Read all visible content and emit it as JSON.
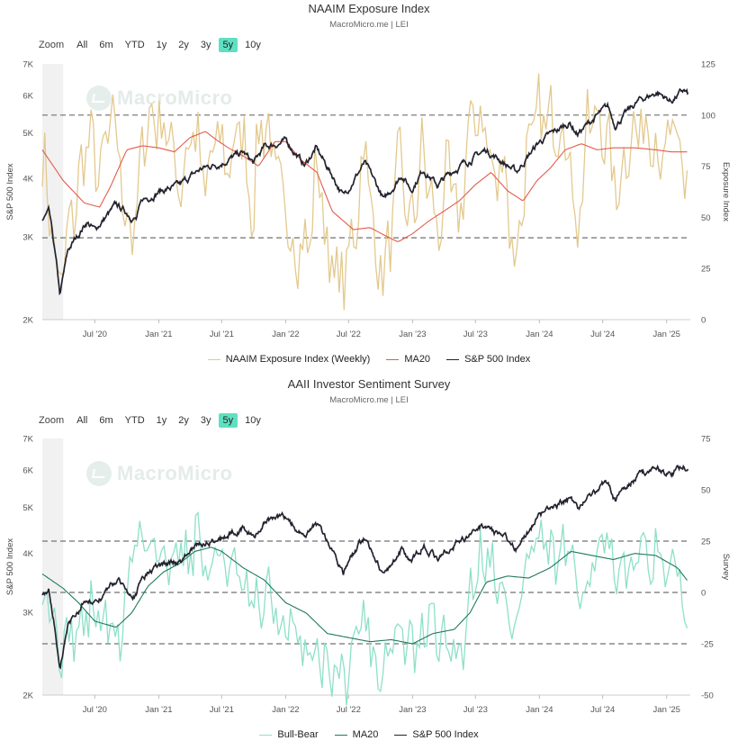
{
  "zoom": {
    "label": "Zoom",
    "buttons": [
      "All",
      "6m",
      "YTD",
      "1y",
      "2y",
      "3y",
      "5y",
      "10y"
    ],
    "active": "5y"
  },
  "watermark": "MacroMicro",
  "chart_data": [
    {
      "type": "line",
      "title": "NAAIM Exposure Index",
      "subtitle": "MacroMicro.me | LEI",
      "x_range": [
        "2020-02-01",
        "2025-03-10"
      ],
      "x_ticks": [
        "Jul '20",
        "Jan '21",
        "Jul '21",
        "Jan '22",
        "Jul '22",
        "Jan '23",
        "Jul '23",
        "Jan '24",
        "Jul '24",
        "Jan '25"
      ],
      "shaded_region": [
        "2020-02-01",
        "2020-04-01"
      ],
      "left_axis": {
        "label": "S&P 500 Index",
        "scale": "log",
        "range": [
          2000,
          7000
        ],
        "ticks": [
          "2K",
          "3K",
          "4K",
          "5K",
          "6K",
          "7K"
        ]
      },
      "right_axis": {
        "label": "Exposure Index",
        "range": [
          0,
          125
        ],
        "ticks": [
          "0",
          "25",
          "50",
          "75",
          "100",
          "125"
        ]
      },
      "reference_lines": [
        100,
        40
      ],
      "legend": [
        "NAAIM Exposure Index (Weekly)",
        "MA20",
        "S&P 500 Index"
      ],
      "colors": {
        "primary": "#e3c98e",
        "ma": "#e25b4b",
        "spx": "#23232f"
      },
      "primary_anchors": [
        [
          "2020-02-01",
          80
        ],
        [
          "2020-03-01",
          45
        ],
        [
          "2020-03-20",
          12
        ],
        [
          "2020-04-15",
          40
        ],
        [
          "2020-05-15",
          65
        ],
        [
          "2020-06-10",
          90
        ],
        [
          "2020-07-15",
          70
        ],
        [
          "2020-08-25",
          100
        ],
        [
          "2020-09-25",
          55
        ],
        [
          "2020-10-25",
          40
        ],
        [
          "2020-11-20",
          95
        ],
        [
          "2020-12-25",
          100
        ],
        [
          "2021-02-01",
          90
        ],
        [
          "2021-03-01",
          65
        ],
        [
          "2021-04-10",
          95
        ],
        [
          "2021-05-15",
          62
        ],
        [
          "2021-06-15",
          90
        ],
        [
          "2021-07-20",
          75
        ],
        [
          "2021-08-25",
          95
        ],
        [
          "2021-09-30",
          52
        ],
        [
          "2021-10-20",
          100
        ],
        [
          "2021-11-20",
          88
        ],
        [
          "2021-12-20",
          55
        ],
        [
          "2022-01-28",
          38
        ],
        [
          "2022-03-10",
          35
        ],
        [
          "2022-04-01",
          78
        ],
        [
          "2022-05-10",
          25
        ],
        [
          "2022-06-15",
          18
        ],
        [
          "2022-07-20",
          45
        ],
        [
          "2022-08-15",
          88
        ],
        [
          "2022-09-20",
          30
        ],
        [
          "2022-10-15",
          22
        ],
        [
          "2022-11-25",
          78
        ],
        [
          "2022-12-25",
          42
        ],
        [
          "2023-01-30",
          82
        ],
        [
          "2023-03-15",
          40
        ],
        [
          "2023-04-15",
          75
        ],
        [
          "2023-05-10",
          42
        ],
        [
          "2023-06-15",
          95
        ],
        [
          "2023-07-25",
          100
        ],
        [
          "2023-08-25",
          62
        ],
        [
          "2023-09-20",
          85
        ],
        [
          "2023-10-20",
          25
        ],
        [
          "2023-11-25",
          75
        ],
        [
          "2023-12-25",
          100
        ],
        [
          "2024-02-01",
          95
        ],
        [
          "2024-03-10",
          100
        ],
        [
          "2024-04-20",
          45
        ],
        [
          "2024-05-20",
          95
        ],
        [
          "2024-06-25",
          100
        ],
        [
          "2024-07-30",
          72
        ],
        [
          "2024-08-10",
          60
        ],
        [
          "2024-09-10",
          88
        ],
        [
          "2024-10-15",
          92
        ],
        [
          "2024-11-15",
          98
        ],
        [
          "2024-12-20",
          75
        ],
        [
          "2025-01-20",
          92
        ],
        [
          "2025-02-20",
          65
        ],
        [
          "2025-03-05",
          90
        ]
      ],
      "ma_anchors": [
        [
          "2020-02-01",
          83
        ],
        [
          "2020-04-01",
          68
        ],
        [
          "2020-06-01",
          57
        ],
        [
          "2020-07-15",
          55
        ],
        [
          "2020-08-15",
          65
        ],
        [
          "2020-10-01",
          83
        ],
        [
          "2020-11-15",
          85
        ],
        [
          "2021-01-01",
          84
        ],
        [
          "2021-02-15",
          82
        ],
        [
          "2021-04-01",
          89
        ],
        [
          "2021-05-15",
          92
        ],
        [
          "2021-06-15",
          88
        ],
        [
          "2021-07-20",
          84
        ],
        [
          "2021-09-01",
          80
        ],
        [
          "2021-10-15",
          75
        ],
        [
          "2021-12-01",
          87
        ],
        [
          "2022-01-01",
          87
        ],
        [
          "2022-02-15",
          78
        ],
        [
          "2022-04-01",
          72
        ],
        [
          "2022-05-15",
          53
        ],
        [
          "2022-07-15",
          44
        ],
        [
          "2022-09-01",
          45
        ],
        [
          "2022-10-15",
          41
        ],
        [
          "2022-11-20",
          38
        ],
        [
          "2023-01-01",
          42
        ],
        [
          "2023-02-15",
          48
        ],
        [
          "2023-04-01",
          53
        ],
        [
          "2023-05-15",
          58
        ],
        [
          "2023-07-01",
          66
        ],
        [
          "2023-08-15",
          72
        ],
        [
          "2023-10-01",
          63
        ],
        [
          "2023-11-15",
          58
        ],
        [
          "2023-12-25",
          68
        ],
        [
          "2024-02-01",
          74
        ],
        [
          "2024-03-15",
          83
        ],
        [
          "2024-05-01",
          86
        ],
        [
          "2024-06-15",
          83
        ],
        [
          "2024-08-01",
          84
        ],
        [
          "2024-10-01",
          84
        ],
        [
          "2024-12-01",
          83
        ],
        [
          "2025-01-15",
          82
        ],
        [
          "2025-03-05",
          82
        ]
      ],
      "spx_anchors": [
        [
          "2020-02-01",
          3250
        ],
        [
          "2020-02-20",
          3380
        ],
        [
          "2020-03-23",
          2240
        ],
        [
          "2020-04-15",
          2800
        ],
        [
          "2020-06-08",
          3230
        ],
        [
          "2020-07-01",
          3100
        ],
        [
          "2020-09-01",
          3500
        ],
        [
          "2020-10-28",
          3270
        ],
        [
          "2020-11-15",
          3580
        ],
        [
          "2021-01-01",
          3750
        ],
        [
          "2021-03-01",
          3850
        ],
        [
          "2021-05-01",
          4180
        ],
        [
          "2021-07-01",
          4320
        ],
        [
          "2021-09-01",
          4530
        ],
        [
          "2021-10-01",
          4300
        ],
        [
          "2021-11-01",
          4660
        ],
        [
          "2022-01-03",
          4790
        ],
        [
          "2022-02-25",
          4250
        ],
        [
          "2022-03-29",
          4630
        ],
        [
          "2022-06-16",
          3660
        ],
        [
          "2022-08-16",
          4300
        ],
        [
          "2022-10-12",
          3580
        ],
        [
          "2022-12-01",
          4080
        ],
        [
          "2022-12-28",
          3780
        ],
        [
          "2023-02-02",
          4180
        ],
        [
          "2023-03-13",
          3860
        ],
        [
          "2023-05-01",
          4170
        ],
        [
          "2023-07-31",
          4590
        ],
        [
          "2023-10-27",
          4120
        ],
        [
          "2023-12-31",
          4770
        ],
        [
          "2024-03-28",
          5250
        ],
        [
          "2024-04-19",
          4970
        ],
        [
          "2024-07-16",
          5670
        ],
        [
          "2024-08-05",
          5190
        ],
        [
          "2024-10-15",
          5860
        ],
        [
          "2024-12-06",
          6090
        ],
        [
          "2025-01-13",
          5830
        ],
        [
          "2025-02-19",
          6140
        ],
        [
          "2025-03-05",
          6000
        ]
      ]
    },
    {
      "type": "line",
      "title": "AAII Investor Sentiment Survey",
      "subtitle": "MacroMicro.me | LEI",
      "x_range": [
        "2020-02-01",
        "2025-03-10"
      ],
      "x_ticks": [
        "Jul '20",
        "Jan '21",
        "Jul '21",
        "Jan '22",
        "Jul '22",
        "Jan '23",
        "Jul '23",
        "Jan '24",
        "Jul '24",
        "Jan '25"
      ],
      "shaded_region": [
        "2020-02-01",
        "2020-04-01"
      ],
      "left_axis": {
        "label": "S&P 500 Index",
        "scale": "log",
        "range": [
          2000,
          7000
        ],
        "ticks": [
          "2K",
          "3K",
          "4K",
          "5K",
          "6K",
          "7K"
        ]
      },
      "right_axis": {
        "label": "Survey",
        "range": [
          -50,
          75
        ],
        "ticks": [
          "-50",
          "-25",
          "0",
          "25",
          "50",
          "75"
        ]
      },
      "reference_lines": [
        25,
        0,
        -25
      ],
      "legend": [
        "Bull-Bear",
        "MA20",
        "S&P 500 Index"
      ],
      "colors": {
        "primary": "#8ee0c8",
        "ma": "#1f7a5c",
        "spx": "#23232f"
      },
      "primary_anchors": [
        [
          "2020-02-01",
          5
        ],
        [
          "2020-03-01",
          -8
        ],
        [
          "2020-03-20",
          -30
        ],
        [
          "2020-04-20",
          -20
        ],
        [
          "2020-05-20",
          -18
        ],
        [
          "2020-06-20",
          -8
        ],
        [
          "2020-07-20",
          -12
        ],
        [
          "2020-08-20",
          -20
        ],
        [
          "2020-09-15",
          -22
        ],
        [
          "2020-10-15",
          20
        ],
        [
          "2020-11-15",
          28
        ],
        [
          "2020-12-20",
          25
        ],
        [
          "2021-01-25",
          8
        ],
        [
          "2021-02-20",
          28
        ],
        [
          "2021-03-25",
          15
        ],
        [
          "2021-04-25",
          32
        ],
        [
          "2021-05-20",
          5
        ],
        [
          "2021-06-15",
          20
        ],
        [
          "2021-07-20",
          15
        ],
        [
          "2021-08-20",
          5
        ],
        [
          "2021-09-20",
          -5
        ],
        [
          "2021-10-15",
          -10
        ],
        [
          "2021-11-20",
          0
        ],
        [
          "2021-12-20",
          -20
        ],
        [
          "2022-01-25",
          -20
        ],
        [
          "2022-02-20",
          -30
        ],
        [
          "2022-03-20",
          -25
        ],
        [
          "2022-04-25",
          -35
        ],
        [
          "2022-05-25",
          -38
        ],
        [
          "2022-06-25",
          -40
        ],
        [
          "2022-07-20",
          -20
        ],
        [
          "2022-08-20",
          -10
        ],
        [
          "2022-09-20",
          -40
        ],
        [
          "2022-10-20",
          -30
        ],
        [
          "2022-11-20",
          -18
        ],
        [
          "2022-12-20",
          -25
        ],
        [
          "2023-01-20",
          -30
        ],
        [
          "2023-02-20",
          -10
        ],
        [
          "2023-03-20",
          -25
        ],
        [
          "2023-04-20",
          -25
        ],
        [
          "2023-05-20",
          -30
        ],
        [
          "2023-06-20",
          5
        ],
        [
          "2023-07-20",
          20
        ],
        [
          "2023-08-20",
          15
        ],
        [
          "2023-09-20",
          -5
        ],
        [
          "2023-10-20",
          -20
        ],
        [
          "2023-11-20",
          10
        ],
        [
          "2023-12-20",
          25
        ],
        [
          "2024-01-20",
          20
        ],
        [
          "2024-02-20",
          15
        ],
        [
          "2024-03-20",
          20
        ],
        [
          "2024-04-20",
          0
        ],
        [
          "2024-05-20",
          10
        ],
        [
          "2024-06-20",
          25
        ],
        [
          "2024-07-20",
          20
        ],
        [
          "2024-08-10",
          0
        ],
        [
          "2024-09-20",
          15
        ],
        [
          "2024-10-20",
          20
        ],
        [
          "2024-11-20",
          20
        ],
        [
          "2024-12-20",
          10
        ],
        [
          "2025-01-20",
          15
        ],
        [
          "2025-02-20",
          -15
        ],
        [
          "2025-03-05",
          -12
        ]
      ],
      "ma_anchors": [
        [
          "2020-02-01",
          9
        ],
        [
          "2020-04-01",
          2
        ],
        [
          "2020-05-15",
          -5
        ],
        [
          "2020-07-01",
          -14
        ],
        [
          "2020-09-01",
          -17
        ],
        [
          "2020-10-15",
          -10
        ],
        [
          "2020-12-01",
          3
        ],
        [
          "2021-01-15",
          10
        ],
        [
          "2021-03-01",
          14
        ],
        [
          "2021-04-15",
          20
        ],
        [
          "2021-06-01",
          22
        ],
        [
          "2021-07-01",
          20
        ],
        [
          "2021-09-01",
          12
        ],
        [
          "2021-11-01",
          6
        ],
        [
          "2022-01-01",
          -5
        ],
        [
          "2022-03-01",
          -10
        ],
        [
          "2022-05-01",
          -20
        ],
        [
          "2022-07-01",
          -22
        ],
        [
          "2022-09-01",
          -24
        ],
        [
          "2022-11-01",
          -23
        ],
        [
          "2023-01-01",
          -25
        ],
        [
          "2023-03-01",
          -20
        ],
        [
          "2023-05-01",
          -18
        ],
        [
          "2023-06-15",
          -10
        ],
        [
          "2023-08-01",
          5
        ],
        [
          "2023-10-01",
          8
        ],
        [
          "2023-12-01",
          7
        ],
        [
          "2024-02-01",
          12
        ],
        [
          "2024-04-01",
          20
        ],
        [
          "2024-06-01",
          18
        ],
        [
          "2024-08-01",
          16
        ],
        [
          "2024-10-01",
          19
        ],
        [
          "2024-12-01",
          18
        ],
        [
          "2025-02-01",
          12
        ],
        [
          "2025-03-05",
          5
        ]
      ],
      "spx_anchors": [
        [
          "2020-02-01",
          3250
        ],
        [
          "2020-02-20",
          3380
        ],
        [
          "2020-03-23",
          2240
        ],
        [
          "2020-04-15",
          2800
        ],
        [
          "2020-06-08",
          3230
        ],
        [
          "2020-07-01",
          3100
        ],
        [
          "2020-09-01",
          3500
        ],
        [
          "2020-10-28",
          3270
        ],
        [
          "2020-11-15",
          3580
        ],
        [
          "2021-01-01",
          3750
        ],
        [
          "2021-03-01",
          3850
        ],
        [
          "2021-05-01",
          4180
        ],
        [
          "2021-07-01",
          4320
        ],
        [
          "2021-09-01",
          4530
        ],
        [
          "2021-10-01",
          4300
        ],
        [
          "2021-11-01",
          4660
        ],
        [
          "2022-01-03",
          4790
        ],
        [
          "2022-02-25",
          4250
        ],
        [
          "2022-03-29",
          4630
        ],
        [
          "2022-06-16",
          3660
        ],
        [
          "2022-08-16",
          4300
        ],
        [
          "2022-10-12",
          3580
        ],
        [
          "2022-12-01",
          4080
        ],
        [
          "2022-12-28",
          3780
        ],
        [
          "2023-02-02",
          4180
        ],
        [
          "2023-03-13",
          3860
        ],
        [
          "2023-05-01",
          4170
        ],
        [
          "2023-07-31",
          4590
        ],
        [
          "2023-10-27",
          4120
        ],
        [
          "2023-12-31",
          4770
        ],
        [
          "2024-03-28",
          5250
        ],
        [
          "2024-04-19",
          4970
        ],
        [
          "2024-07-16",
          5670
        ],
        [
          "2024-08-05",
          5190
        ],
        [
          "2024-10-15",
          5860
        ],
        [
          "2024-12-06",
          6090
        ],
        [
          "2025-01-13",
          5830
        ],
        [
          "2025-02-19",
          6140
        ],
        [
          "2025-03-05",
          6000
        ]
      ]
    }
  ]
}
